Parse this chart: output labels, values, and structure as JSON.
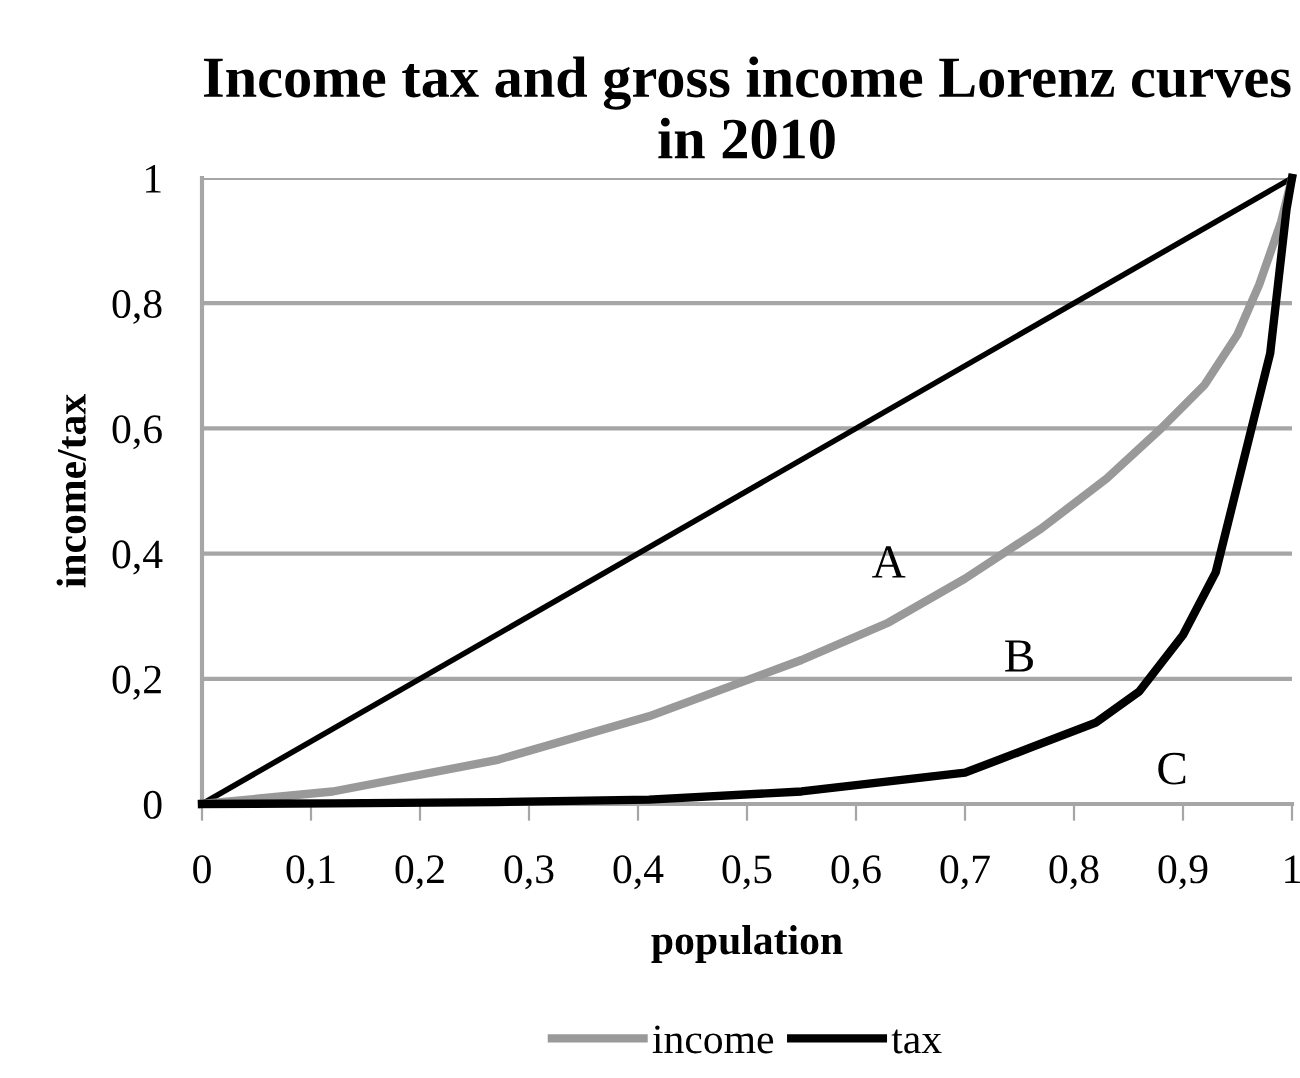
{
  "chart_data": {
    "type": "line",
    "title": "Income tax and gross income Lorenz curves in 2010",
    "xlabel": "population",
    "ylabel": "income/tax",
    "xlim": [
      0,
      1
    ],
    "ylim": [
      0,
      1
    ],
    "xticks": [
      {
        "value": 0,
        "label": "0"
      },
      {
        "value": 0.1,
        "label": "0,1"
      },
      {
        "value": 0.2,
        "label": "0,2"
      },
      {
        "value": 0.3,
        "label": "0,3"
      },
      {
        "value": 0.4,
        "label": "0,4"
      },
      {
        "value": 0.5,
        "label": "0,5"
      },
      {
        "value": 0.6,
        "label": "0,6"
      },
      {
        "value": 0.7,
        "label": "0,7"
      },
      {
        "value": 0.8,
        "label": "0,8"
      },
      {
        "value": 0.9,
        "label": "0,9"
      },
      {
        "value": 1,
        "label": "1"
      }
    ],
    "yticks": [
      {
        "value": 0,
        "label": "0"
      },
      {
        "value": 0.2,
        "label": "0,2"
      },
      {
        "value": 0.4,
        "label": "0,4"
      },
      {
        "value": 0.6,
        "label": "0,6"
      },
      {
        "value": 0.8,
        "label": "0,8"
      },
      {
        "value": 1,
        "label": "1"
      }
    ],
    "grid": "y",
    "legend": "bottom",
    "marker": "none",
    "line_style": "solid",
    "series": [
      {
        "color": "#000000",
        "x": [
          0,
          1
        ],
        "values": [
          0,
          1
        ]
      },
      {
        "name": "income",
        "color": "#999999",
        "x": [
          0,
          0.12,
          0.27,
          0.41,
          0.55,
          0.63,
          0.7,
          0.77,
          0.83,
          0.88,
          0.92,
          0.95,
          0.97,
          0.99,
          1
        ],
        "values": [
          0,
          0.02,
          0.07,
          0.14,
          0.23,
          0.29,
          0.36,
          0.44,
          0.52,
          0.6,
          0.67,
          0.75,
          0.83,
          0.93,
          1
        ]
      },
      {
        "name": "tax",
        "color": "#000000",
        "x": [
          0,
          0.12,
          0.27,
          0.41,
          0.55,
          0.7,
          0.76,
          0.82,
          0.86,
          0.9,
          0.93,
          0.98,
          0.995,
          1
        ],
        "values": [
          0,
          0.001,
          0.003,
          0.007,
          0.02,
          0.05,
          0.09,
          0.13,
          0.18,
          0.27,
          0.37,
          0.72,
          0.95,
          1
        ]
      }
    ],
    "annotations": [
      "A",
      "B",
      "C"
    ]
  }
}
